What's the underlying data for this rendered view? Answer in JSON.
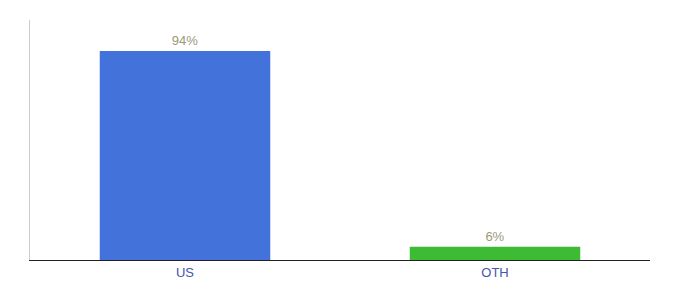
{
  "chart_data": {
    "type": "bar",
    "categories": [
      "US",
      "OTH"
    ],
    "values": [
      94,
      6
    ],
    "value_labels": [
      "94%",
      "6%"
    ],
    "data_labels": true,
    "colors": [
      "#4472db",
      "#3dbb35"
    ],
    "ylim": [
      0,
      108
    ],
    "grid": false,
    "tick_labels": "x"
  }
}
